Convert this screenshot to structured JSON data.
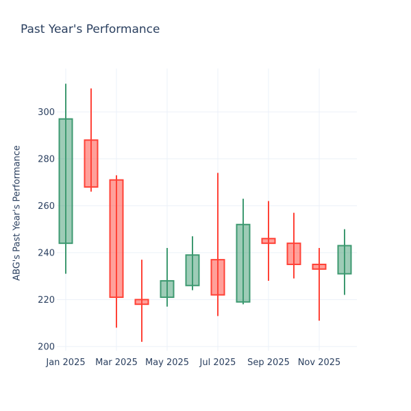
{
  "chart_data": {
    "type": "candlestick",
    "title": "Past Year's Performance",
    "xlabel": "",
    "ylabel": "ABG's Past Year's Performance",
    "legend": "none",
    "grid": true,
    "yticks": [
      200,
      220,
      240,
      260,
      280,
      300
    ],
    "ylim": [
      198.2,
      318.5
    ],
    "x_tick_labels": [
      "Jan 2025",
      "Mar 2025",
      "May 2025",
      "Jul 2025",
      "Sep 2025",
      "Nov 2025"
    ],
    "x_tick_indices": [
      0,
      2,
      4,
      6,
      8,
      10
    ],
    "ohlc": [
      {
        "month": "Jan 2025",
        "open": 244,
        "high": 312,
        "low": 231,
        "close": 297,
        "direction": "up"
      },
      {
        "month": "Feb 2025",
        "open": 288,
        "high": 310,
        "low": 266,
        "close": 268,
        "direction": "down"
      },
      {
        "month": "Mar 2025",
        "open": 271,
        "high": 273,
        "low": 208,
        "close": 221,
        "direction": "down"
      },
      {
        "month": "Apr 2025",
        "open": 220,
        "high": 237,
        "low": 202,
        "close": 218,
        "direction": "down"
      },
      {
        "month": "May 2025",
        "open": 221,
        "high": 242,
        "low": 217,
        "close": 228,
        "direction": "up"
      },
      {
        "month": "Jun 2025",
        "open": 226,
        "high": 247,
        "low": 224,
        "close": 239,
        "direction": "up"
      },
      {
        "month": "Jul 2025",
        "open": 237,
        "high": 274,
        "low": 213,
        "close": 222,
        "direction": "down"
      },
      {
        "month": "Aug 2025",
        "open": 219,
        "high": 263,
        "low": 218,
        "close": 252,
        "direction": "up"
      },
      {
        "month": "Sep 2025",
        "open": 246,
        "high": 262,
        "low": 228,
        "close": 244,
        "direction": "down"
      },
      {
        "month": "Oct 2025",
        "open": 244,
        "high": 257,
        "low": 229,
        "close": 235,
        "direction": "down"
      },
      {
        "month": "Nov 2025",
        "open": 235,
        "high": 242,
        "low": 211,
        "close": 233,
        "direction": "down"
      },
      {
        "month": "Dec 2025",
        "open": 231,
        "high": 250,
        "low": 222,
        "close": 243,
        "direction": "up"
      }
    ],
    "colors": {
      "increasing_line": "#3D9970",
      "increasing_fill": "rgba(61,153,112,0.5)",
      "decreasing_line": "#FF4136",
      "decreasing_fill": "rgba(255,65,54,0.5)",
      "text": "#2a3f5f",
      "grid": "#EBF0F8",
      "background": "#ffffff"
    }
  }
}
